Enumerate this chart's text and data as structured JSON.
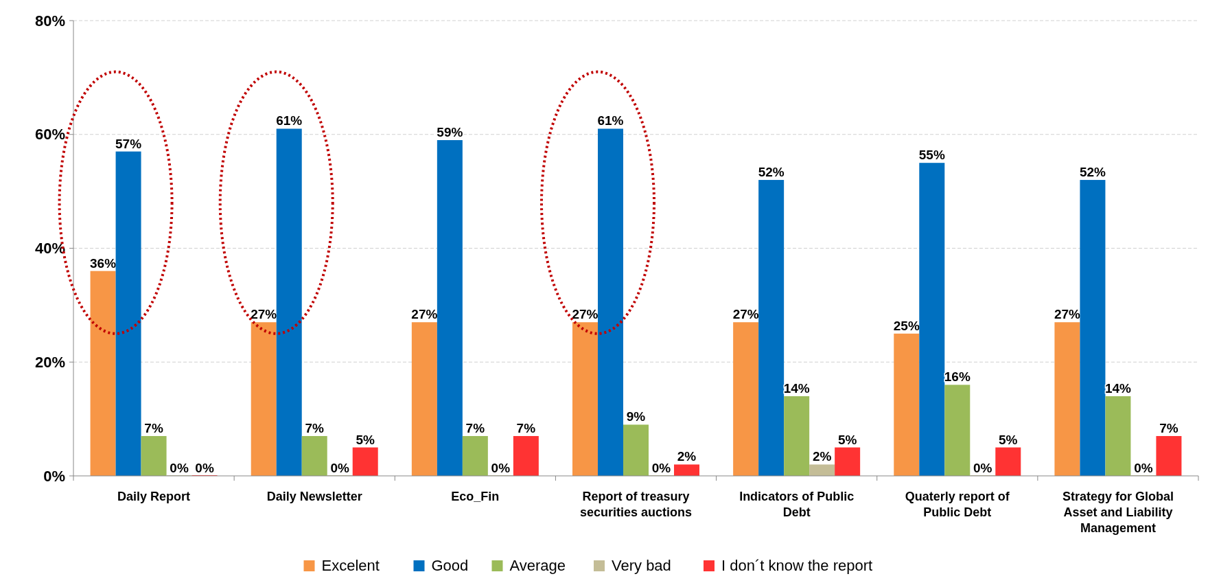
{
  "chart_data": {
    "type": "bar",
    "categories": [
      "Daily Report",
      "Daily Newsletter",
      "Eco_Fin",
      "Report of treasury securities auctions",
      "Indicators of Public Debt",
      "Quaterly report of Public Debt",
      "Strategy for Global Asset and Liability Management"
    ],
    "series": [
      {
        "name": "Excelent",
        "color": "#f79646",
        "values": [
          36,
          27,
          27,
          27,
          27,
          25,
          27
        ],
        "value_labels": [
          "36%",
          "27%",
          "27%",
          "27%",
          "27%",
          "25%",
          "27%"
        ]
      },
      {
        "name": "Good",
        "color": "#0070c0",
        "values": [
          57,
          61,
          59,
          61,
          52,
          55,
          52
        ],
        "value_labels": [
          "57%",
          "61%",
          "59%",
          "61%",
          "52%",
          "55%",
          "52%"
        ]
      },
      {
        "name": "Average",
        "color": "#9bbb59",
        "values": [
          7,
          7,
          7,
          9,
          14,
          16,
          14
        ],
        "value_labels": [
          "7%",
          "7%",
          "7%",
          "9%",
          "14%",
          "16%",
          "14%"
        ]
      },
      {
        "name": "Very bad",
        "color": "#c4bd97",
        "values": [
          0,
          0,
          0,
          0,
          2,
          0,
          0
        ],
        "value_labels": [
          "0%",
          "0%",
          "0%",
          "0%",
          "2%",
          "0%",
          "0%"
        ]
      },
      {
        "name": "I don´t know the report",
        "color": "#ff3333",
        "values": [
          0,
          5,
          7,
          2,
          5,
          5,
          7
        ],
        "value_labels": [
          "0%",
          "5%",
          "7%",
          "2%",
          "5%",
          "5%",
          "7%"
        ]
      }
    ],
    "ylim": [
      0,
      80
    ],
    "yticks": [
      {
        "value": 0,
        "label": "0%"
      },
      {
        "value": 20,
        "label": "20%"
      },
      {
        "value": 40,
        "label": "40%"
      },
      {
        "value": 60,
        "label": "60%"
      },
      {
        "value": 80,
        "label": "80%"
      }
    ],
    "grid": "y",
    "legend": "bottom"
  }
}
